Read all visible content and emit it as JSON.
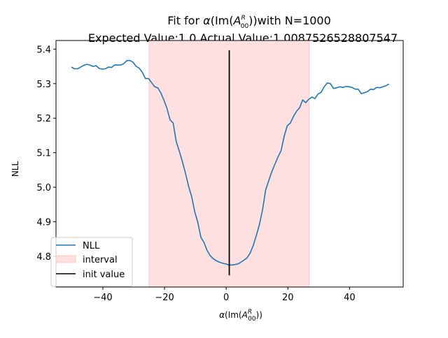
{
  "chart_data": {
    "type": "line",
    "title_line1_prefix": "Fit for ",
    "title_line1_suffix": "with N=1000",
    "title_line2": "Expected Value:1.0 Actual Value:1.0087526528807547",
    "math_alpha": "α",
    "math_im": "Im",
    "math_a": "A",
    "math_sup": "R",
    "math_sub": "00",
    "ylabel": "NLL",
    "xlim": [
      -55.2,
      57.4
    ],
    "ylim": [
      4.711,
      5.425
    ],
    "xticks": [
      -40,
      -20,
      0,
      20,
      40
    ],
    "xtick_labels": [
      "−40",
      "−20",
      "0",
      "20",
      "40"
    ],
    "yticks": [
      4.8,
      4.9,
      5.0,
      5.1,
      5.2,
      5.3,
      5.4
    ],
    "ytick_labels": [
      "4.8",
      "4.9",
      "5.0",
      "5.1",
      "5.2",
      "5.3",
      "5.4"
    ],
    "interval": [
      -25.0,
      26.9
    ],
    "init_value": {
      "x": 1.0,
      "ymin": 4.745,
      "ymax": 5.397
    },
    "legend": {
      "position": "lower-left",
      "entries": [
        "NLL",
        "interval",
        "init value"
      ]
    },
    "colors": {
      "line": "#1f77b4",
      "interval_fill": "#ffe0e0",
      "interval_edge": "#ffc8c8",
      "init_line": "#000000"
    },
    "series": [
      {
        "name": "NLL",
        "x": [
          -50.2,
          -49.2,
          -48.2,
          -47.2,
          -46.2,
          -45.2,
          -44.2,
          -43.2,
          -42.2,
          -41.2,
          -40.2,
          -39.2,
          -38.2,
          -37.2,
          -36.2,
          -35.2,
          -34.2,
          -33.2,
          -32.2,
          -31.2,
          -30.2,
          -29.2,
          -28.2,
          -27.2,
          -26.2,
          -25.2,
          -24.2,
          -23.2,
          -22.2,
          -21.2,
          -20.2,
          -19.2,
          -18.2,
          -17.2,
          -16.2,
          -15.2,
          -14.2,
          -13.2,
          -12.2,
          -11.2,
          -10.2,
          -9.2,
          -8.2,
          -7.2,
          -6.2,
          -5.2,
          -4.2,
          -3.2,
          -2.2,
          -1.2,
          -0.2,
          0.8,
          1.8,
          2.8,
          3.8,
          4.8,
          5.8,
          6.8,
          7.8,
          8.8,
          9.8,
          10.8,
          11.8,
          12.8,
          13.8,
          14.8,
          15.8,
          16.8,
          17.8,
          18.8,
          19.8,
          20.8,
          21.8,
          22.8,
          23.8,
          24.8,
          25.8,
          26.8,
          27.8,
          28.8,
          29.8,
          30.8,
          31.8,
          32.8,
          33.8,
          34.8,
          35.8,
          36.8,
          37.8,
          38.8,
          39.8,
          40.8,
          41.8,
          42.8,
          43.8,
          44.8,
          45.8,
          46.8,
          47.8,
          48.8,
          49.8,
          50.8,
          51.8,
          52.8
        ],
        "values": [
          5.348,
          5.343,
          5.343,
          5.348,
          5.353,
          5.356,
          5.354,
          5.35,
          5.352,
          5.344,
          5.342,
          5.343,
          5.348,
          5.347,
          5.354,
          5.354,
          5.354,
          5.358,
          5.367,
          5.367,
          5.362,
          5.35,
          5.345,
          5.333,
          5.315,
          5.315,
          5.303,
          5.291,
          5.288,
          5.273,
          5.252,
          5.228,
          5.195,
          5.186,
          5.132,
          5.104,
          5.074,
          5.04,
          5.003,
          4.973,
          4.929,
          4.898,
          4.855,
          4.84,
          4.817,
          4.802,
          4.793,
          4.787,
          4.783,
          4.78,
          4.778,
          4.775,
          4.775,
          4.776,
          4.778,
          4.783,
          4.789,
          4.796,
          4.81,
          4.832,
          4.861,
          4.893,
          4.935,
          4.992,
          5.019,
          5.045,
          5.067,
          5.088,
          5.106,
          5.148,
          5.178,
          5.186,
          5.205,
          5.22,
          5.23,
          5.253,
          5.245,
          5.255,
          5.261,
          5.257,
          5.27,
          5.275,
          5.291,
          5.302,
          5.3,
          5.286,
          5.288,
          5.291,
          5.289,
          5.292,
          5.291,
          5.289,
          5.284,
          5.284,
          5.271,
          5.274,
          5.277,
          5.284,
          5.283,
          5.289,
          5.288,
          5.291,
          5.294,
          5.299
        ]
      }
    ]
  }
}
